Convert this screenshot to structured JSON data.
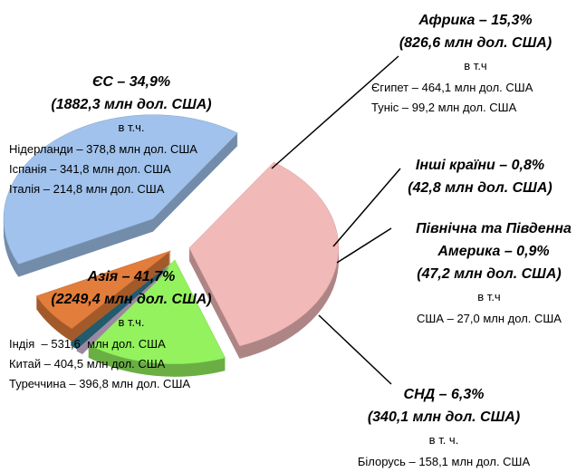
{
  "chart_data": {
    "type": "pie",
    "values": [
      34.9,
      15.3,
      0.8,
      0.9,
      6.3,
      41.7
    ],
    "value_labels": [
      "ЄС – 34,9%",
      "Африка – 15,3%",
      "Інші країни – 0,8%",
      "Північна та Південна Америка – 0,9%",
      "СНД – 6,3%",
      "Азія – 41,7%"
    ],
    "colors": [
      "#f2b9b9",
      "#93f25e",
      "#d9bde3",
      "#2f8098",
      "#e27d3c",
      "#a0c2ec"
    ],
    "notes": [
      {
        "amount": "(1882,3 млн дол. США)",
        "subheading": "в т.ч.",
        "details": [
          "Нідерланди – 378,8 млн дол. США",
          "Іспанія – 341,8 млн дол. США",
          "Італія – 214,8 млн дол. США"
        ]
      },
      {
        "amount": "(826,6 млн дол. США)",
        "subheading": "в т.ч",
        "details": [
          "Єгипет – 464,1 млн дол. США",
          "Туніс – 99,2 млн дол. США"
        ]
      },
      {
        "amount": "(42,8 млн дол. США)"
      },
      {
        "amount": "(47,2 млн дол. США)",
        "subheading": "в т.ч",
        "details": [
          "США – 27,0 млн дол. США"
        ]
      },
      {
        "amount": "(340,1 млн дол. США)",
        "subheading": "в т. ч.",
        "details": [
          "Білорусь – 158,1 млн дол. США"
        ]
      },
      {
        "amount": "(2249,4 млн дол. США)",
        "subheading": "в т.ч.",
        "details": [
          "Індія  – 531,6  млн дол. США",
          "Китай – 404,5 млн дол. США",
          "Туреччина – 396,8 млн дол. США"
        ]
      }
    ]
  }
}
